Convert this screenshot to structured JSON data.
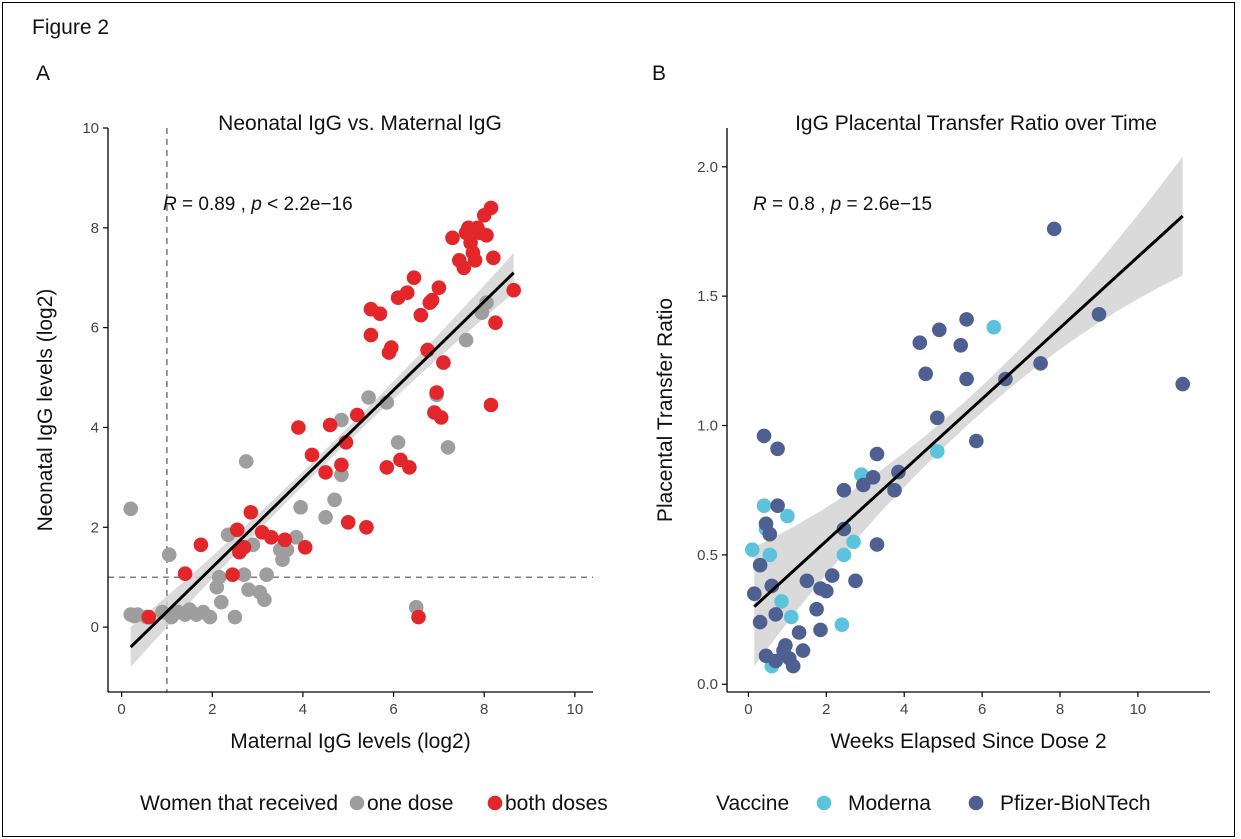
{
  "figure_label": "Figure 2",
  "panels": [
    {
      "letter": "A"
    },
    {
      "letter": "B"
    }
  ],
  "chart_data": [
    {
      "type": "scatter",
      "title": "Neonatal IgG vs. Maternal IgG",
      "xlabel": "Maternal IgG levels (log2)",
      "ylabel": "Neonatal IgG levels (log2)",
      "xlim": [
        -0.3,
        10.4
      ],
      "ylim": [
        -1.3,
        10
      ],
      "xticks": [
        0,
        2,
        4,
        6,
        8,
        10
      ],
      "yticks": [
        0,
        2,
        4,
        6,
        8,
        10
      ],
      "grid": false,
      "stat_r": "0.89",
      "stat_p": "< 2.2e−16",
      "reference_lines": {
        "x": 1,
        "y": 1
      },
      "fit": {
        "x0": 0.2,
        "y0": -0.4,
        "x1": 8.65,
        "y1": 7.1,
        "band_half_width_ends": 0.4,
        "band_half_width_mid": 0.14
      },
      "legend": {
        "title": "Women that received",
        "placement": "bottom",
        "entries": [
          {
            "label": "one dose",
            "color": "#9e9e9e"
          },
          {
            "label": "both doses",
            "color": "#e3262a"
          }
        ]
      },
      "series": [
        {
          "name": "one dose",
          "color": "#9e9e9e",
          "points": [
            [
              0.2,
              2.37
            ],
            [
              0.2,
              0.25
            ],
            [
              0.28,
              0.22
            ],
            [
              0.35,
              0.25
            ],
            [
              0.55,
              0.2
            ],
            [
              0.9,
              0.3
            ],
            [
              1.05,
              1.45
            ],
            [
              1.1,
              0.2
            ],
            [
              1.25,
              0.3
            ],
            [
              1.4,
              0.25
            ],
            [
              1.5,
              0.35
            ],
            [
              1.65,
              0.25
            ],
            [
              1.8,
              0.3
            ],
            [
              1.95,
              0.2
            ],
            [
              2.1,
              0.8
            ],
            [
              2.15,
              1.0
            ],
            [
              2.2,
              0.5
            ],
            [
              2.35,
              1.85
            ],
            [
              2.5,
              0.2
            ],
            [
              2.7,
              1.05
            ],
            [
              2.75,
              3.32
            ],
            [
              2.8,
              0.75
            ],
            [
              2.9,
              1.65
            ],
            [
              3.05,
              0.7
            ],
            [
              3.15,
              0.55
            ],
            [
              3.2,
              1.05
            ],
            [
              3.5,
              1.55
            ],
            [
              3.55,
              1.35
            ],
            [
              3.65,
              1.55
            ],
            [
              3.85,
              1.8
            ],
            [
              3.95,
              2.4
            ],
            [
              4.5,
              2.2
            ],
            [
              4.7,
              2.55
            ],
            [
              4.85,
              3.05
            ],
            [
              4.85,
              4.15
            ],
            [
              5.45,
              4.6
            ],
            [
              5.85,
              4.5
            ],
            [
              6.1,
              3.7
            ],
            [
              6.5,
              0.4
            ],
            [
              6.95,
              4.65
            ],
            [
              7.2,
              3.6
            ],
            [
              7.6,
              5.75
            ],
            [
              7.95,
              6.3
            ],
            [
              8.05,
              6.5
            ]
          ]
        },
        {
          "name": "both doses",
          "color": "#e3262a",
          "points": [
            [
              0.6,
              0.2
            ],
            [
              1.4,
              1.07
            ],
            [
              1.75,
              1.65
            ],
            [
              2.45,
              1.05
            ],
            [
              2.55,
              1.95
            ],
            [
              2.6,
              1.5
            ],
            [
              2.7,
              1.6
            ],
            [
              2.85,
              2.3
            ],
            [
              3.1,
              1.9
            ],
            [
              3.3,
              1.8
            ],
            [
              3.6,
              1.75
            ],
            [
              3.9,
              4.0
            ],
            [
              4.05,
              1.6
            ],
            [
              4.2,
              3.45
            ],
            [
              4.5,
              3.1
            ],
            [
              4.6,
              4.05
            ],
            [
              4.85,
              3.25
            ],
            [
              4.95,
              3.7
            ],
            [
              5.0,
              2.1
            ],
            [
              5.2,
              4.25
            ],
            [
              5.4,
              2.0
            ],
            [
              5.5,
              6.37
            ],
            [
              5.5,
              5.85
            ],
            [
              5.7,
              6.28
            ],
            [
              5.85,
              3.2
            ],
            [
              5.9,
              5.5
            ],
            [
              5.95,
              5.6
            ],
            [
              6.1,
              6.6
            ],
            [
              6.15,
              3.35
            ],
            [
              6.3,
              6.7
            ],
            [
              6.35,
              3.2
            ],
            [
              6.45,
              7.0
            ],
            [
              6.55,
              0.2
            ],
            [
              6.6,
              6.25
            ],
            [
              6.75,
              5.55
            ],
            [
              6.8,
              6.5
            ],
            [
              6.85,
              6.55
            ],
            [
              6.9,
              4.3
            ],
            [
              6.95,
              4.7
            ],
            [
              7.0,
              6.8
            ],
            [
              7.05,
              4.2
            ],
            [
              7.1,
              5.3
            ],
            [
              7.3,
              7.8
            ],
            [
              7.45,
              7.35
            ],
            [
              7.55,
              7.2
            ],
            [
              7.6,
              7.9
            ],
            [
              7.65,
              8.0
            ],
            [
              7.7,
              7.7
            ],
            [
              7.75,
              7.5
            ],
            [
              7.8,
              7.35
            ],
            [
              7.85,
              8.0
            ],
            [
              7.9,
              7.9
            ],
            [
              8.0,
              8.25
            ],
            [
              8.05,
              7.85
            ],
            [
              8.15,
              8.4
            ],
            [
              8.15,
              4.45
            ],
            [
              8.2,
              7.4
            ],
            [
              8.25,
              6.1
            ],
            [
              8.65,
              6.75
            ]
          ]
        }
      ]
    },
    {
      "type": "scatter",
      "title": "IgG Placental Transfer Ratio over Time",
      "xlabel": "Weeks Elapsed Since Dose 2",
      "ylabel": "Placental Transfer Ratio",
      "xlim": [
        -0.55,
        11.85
      ],
      "ylim": [
        -0.03,
        2.15
      ],
      "xticks": [
        0,
        2,
        4,
        6,
        8,
        10
      ],
      "yticks": [
        "0.0",
        "0.5",
        "1.0",
        "1.5",
        "2.0"
      ],
      "grid": false,
      "stat_r": "0.8",
      "stat_p": "= 2.6e−15",
      "fit": {
        "x0": 0.15,
        "y0": 0.3,
        "x1": 11.15,
        "y1": 1.81,
        "band_half_width_ends": 0.23,
        "band_half_width_mid": 0.05
      },
      "legend": {
        "title": "Vaccine",
        "placement": "bottom",
        "entries": [
          {
            "label": "Moderna",
            "color": "#5bc3db"
          },
          {
            "label": "Pfizer-BioNTech",
            "color": "#4e5f91"
          }
        ]
      },
      "series": [
        {
          "name": "Moderna",
          "color": "#5bc3db",
          "points": [
            [
              0.1,
              0.52
            ],
            [
              0.4,
              0.69
            ],
            [
              0.45,
              0.6
            ],
            [
              0.55,
              0.5
            ],
            [
              0.6,
              0.07
            ],
            [
              0.85,
              0.32
            ],
            [
              1.0,
              0.65
            ],
            [
              1.1,
              0.26
            ],
            [
              2.4,
              0.23
            ],
            [
              2.45,
              0.5
            ],
            [
              2.7,
              0.55
            ],
            [
              2.9,
              0.81
            ],
            [
              4.85,
              0.9
            ],
            [
              6.3,
              1.38
            ]
          ]
        },
        {
          "name": "Pfizer-BioNTech",
          "color": "#4e5f91",
          "points": [
            [
              0.15,
              0.35
            ],
            [
              0.3,
              0.46
            ],
            [
              0.3,
              0.24
            ],
            [
              0.4,
              0.96
            ],
            [
              0.45,
              0.11
            ],
            [
              0.45,
              0.62
            ],
            [
              0.55,
              0.58
            ],
            [
              0.6,
              0.38
            ],
            [
              0.7,
              0.09
            ],
            [
              0.7,
              0.27
            ],
            [
              0.75,
              0.91
            ],
            [
              0.75,
              0.69
            ],
            [
              0.9,
              0.13
            ],
            [
              0.95,
              0.15
            ],
            [
              1.05,
              0.1
            ],
            [
              1.15,
              0.07
            ],
            [
              1.3,
              0.2
            ],
            [
              1.4,
              0.13
            ],
            [
              1.5,
              0.4
            ],
            [
              1.75,
              0.29
            ],
            [
              1.85,
              0.21
            ],
            [
              1.85,
              0.37
            ],
            [
              2.0,
              0.36
            ],
            [
              2.15,
              0.42
            ],
            [
              2.45,
              0.6
            ],
            [
              2.45,
              0.75
            ],
            [
              2.75,
              0.4
            ],
            [
              2.95,
              0.77
            ],
            [
              3.2,
              0.8
            ],
            [
              3.3,
              0.54
            ],
            [
              3.3,
              0.89
            ],
            [
              3.75,
              0.75
            ],
            [
              3.85,
              0.82
            ],
            [
              4.4,
              1.32
            ],
            [
              4.55,
              1.2
            ],
            [
              4.85,
              1.03
            ],
            [
              4.9,
              1.37
            ],
            [
              5.45,
              1.31
            ],
            [
              5.6,
              1.41
            ],
            [
              5.6,
              1.18
            ],
            [
              5.85,
              0.94
            ],
            [
              6.6,
              1.18
            ],
            [
              7.5,
              1.24
            ],
            [
              7.85,
              1.76
            ],
            [
              9.0,
              1.43
            ],
            [
              11.15,
              1.16
            ]
          ]
        }
      ]
    }
  ]
}
